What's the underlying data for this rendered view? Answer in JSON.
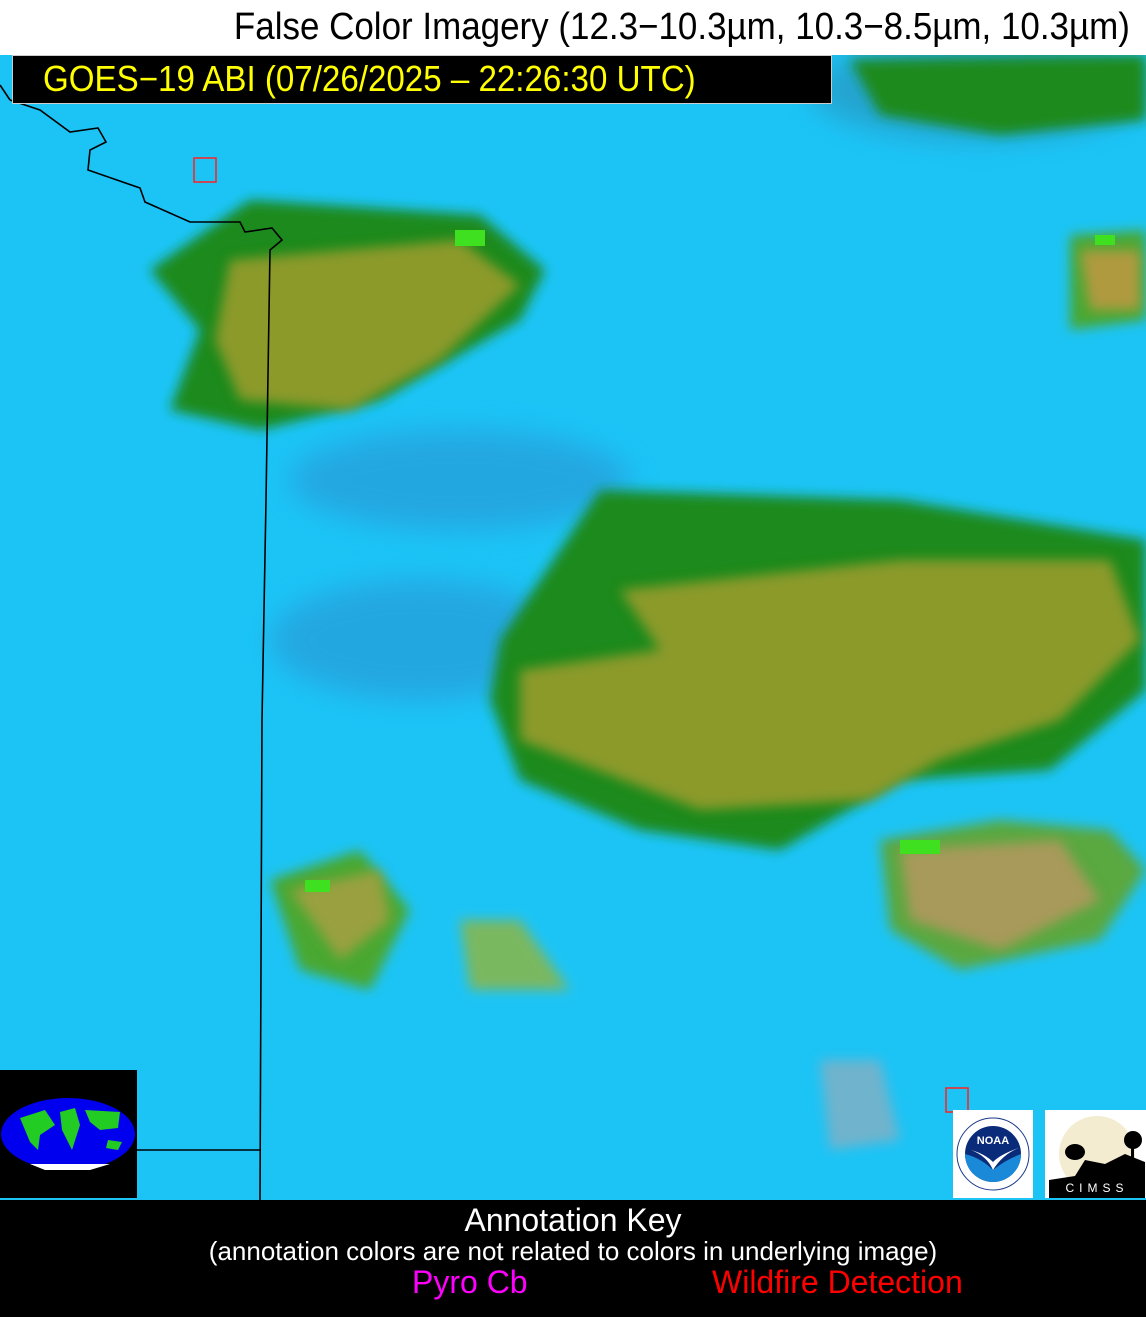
{
  "header": {
    "title": "False Color Imagery (12.3−10.3µm, 10.3−8.5µm, 10.3µm)",
    "subtitle": "GOES−19 ABI (07/26/2025 – 22:26:30 UTC)"
  },
  "imagery": {
    "background_color": "#1cc4f6",
    "cloud_colors": [
      "#8c9a2c",
      "#1f8a12",
      "#3fe020"
    ],
    "fire_marker_color": "#ff2020"
  },
  "logos": {
    "noaa": "NOAA",
    "noaa_ring": "NATIONAL OCEANIC AND ATMOSPHERIC ADMINISTRATION · U.S. DEPARTMENT OF COMMERCE",
    "cimss": "CIMSS"
  },
  "annotation_key": {
    "title": "Annotation Key",
    "note": "(annotation colors are not related to colors in underlying image)",
    "items": [
      {
        "label": "Pyro Cb",
        "color": "#ff00ff"
      },
      {
        "label": "Wildfire Detection",
        "color": "#ff0000"
      }
    ]
  }
}
